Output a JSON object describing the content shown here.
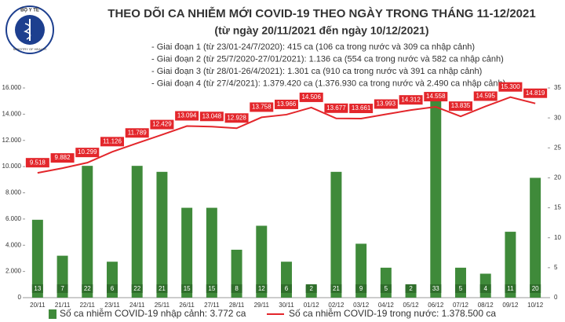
{
  "logo": {
    "top": "BỘ Y TẾ",
    "bottom": "MINISTRY OF HEALTH"
  },
  "chart_data": {
    "type": "bar-line",
    "title": "THEO DÕI CA NHIỄM MỚI COVID-19 THEO NGÀY TRONG THÁNG 11-12/2021",
    "subtitle": "(từ ngày 20/11/2021 đến ngày 10/12/2021)",
    "annotations": [
      "- Giai đoạn 1 (từ 23/01-24/7/2020): 415 ca (106 ca trong nước và 309 ca nhập cảnh)",
      "- Giai đoạn 2 (từ 25/7/2020-27/01/2021): 1.136 ca (554 ca trong nước và 582 ca nhập cảnh)",
      "- Giai đoạn 3 (từ 28/01-26/4/2021): 1.301 ca (910 ca trong nước và 391 ca nhập cảnh)",
      "- Giai đoạn 4 (từ 27/4/2021): 1.379.420 ca (1.376.930 ca trong nước và 2.490 ca nhập cảnh)"
    ],
    "categories": [
      "20/11",
      "21/11",
      "22/11",
      "23/11",
      "24/11",
      "25/11",
      "26/11",
      "27/11",
      "28/11",
      "29/11",
      "30/11",
      "01/12",
      "02/12",
      "03/12",
      "04/12",
      "05/12",
      "06/12",
      "07/12",
      "08/12",
      "09/12",
      "10/12"
    ],
    "series": [
      {
        "name": "Số ca nhiễm COVID-19 nhập cảnh: 3.772 ca",
        "kind": "bar",
        "axis": "y2",
        "color": "#3f8a3a",
        "values": [
          13,
          7,
          22,
          6,
          22,
          21,
          15,
          15,
          8,
          12,
          6,
          2,
          21,
          9,
          5,
          2,
          33,
          5,
          4,
          11,
          20
        ]
      },
      {
        "name": "Số ca nhiễm COVID-19 trong nước: 1.378.500 ca",
        "kind": "line",
        "color": "#e3262b",
        "values": [
          9518,
          9882,
          10299,
          11126,
          11789,
          12429,
          13094,
          13048,
          12928,
          13758,
          13966,
          14506,
          13677,
          13661,
          13993,
          14312,
          14558,
          13835,
          14595,
          15300,
          14819
        ],
        "value_labels": [
          "9.518",
          "9.882",
          "10.299",
          "11.126",
          "11.789",
          "12.429",
          "13.094",
          "13.048",
          "12.928",
          "13.758",
          "13.966",
          "14.506",
          "13.677",
          "13.661",
          "13.993",
          "14.312",
          "14.558",
          "13.835",
          "14.595",
          "15.300",
          "14.819"
        ]
      }
    ],
    "ylim": [
      0,
      16000
    ],
    "yticks": [
      0,
      {
        "value": 2000,
        "label": "2.000"
      },
      {
        "value": 4000,
        "label": "4.000"
      },
      {
        "value": 6000,
        "label": "6.000"
      },
      {
        "value": 8000,
        "label": "8.000"
      },
      {
        "value": 10000,
        "label": "10.000"
      },
      {
        "value": 12000,
        "label": "12.000"
      },
      {
        "value": 14000,
        "label": "14.000"
      },
      {
        "value": 16000,
        "label": "16.000"
      }
    ],
    "y2lim": [
      0,
      35
    ],
    "y2ticks": [
      0,
      5,
      10,
      15,
      20,
      25,
      30,
      35
    ],
    "grid": false
  }
}
